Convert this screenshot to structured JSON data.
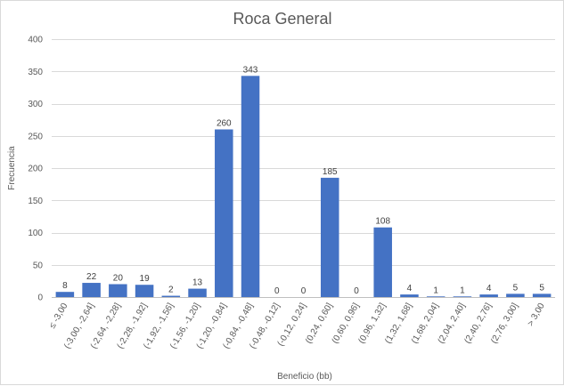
{
  "chart_data": {
    "type": "bar",
    "title": "Roca General",
    "xlabel": "Beneficio (bb)",
    "ylabel": "Frecuencia",
    "ylim": [
      0,
      400
    ],
    "yticks": [
      0,
      50,
      100,
      150,
      200,
      250,
      300,
      350,
      400
    ],
    "grid": true,
    "legend": "none",
    "bar_color": "#4472C4",
    "categories": [
      "≤ -3,00",
      "(-3,00, -2,64]",
      "(-2,64, -2,28]",
      "(-2,28, -1,92]",
      "(-1,92, -1,56]",
      "(-1,56, -1,20]",
      "(-1,20, -0,84]",
      "(-0,84, -0,48]",
      "(-0,48, -0,12]",
      "(-0,12, 0,24]",
      "(0,24, 0,60]",
      "(0,60, 0,96]",
      "(0,96, 1,32]",
      "(1,32, 1,68]",
      "(1,68, 2,04]",
      "(2,04, 2,40]",
      "(2,40, 2,76]",
      "(2,76, 3,00]",
      "> 3,00"
    ],
    "values": [
      8,
      22,
      20,
      19,
      2,
      13,
      260,
      343,
      0,
      0,
      185,
      0,
      108,
      4,
      1,
      1,
      4,
      5,
      5
    ]
  }
}
